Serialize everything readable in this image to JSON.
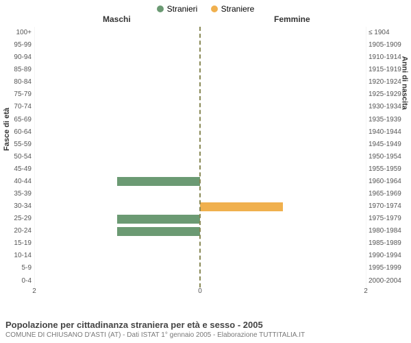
{
  "legend": {
    "male": {
      "label": "Stranieri",
      "color": "#6b9a73"
    },
    "female": {
      "label": "Straniere",
      "color": "#f0b04e"
    }
  },
  "subtitles": {
    "left": "Maschi",
    "right": "Femmine"
  },
  "axis": {
    "left_title": "Fasce di età",
    "right_title": "Anni di nascita",
    "xmax": 2,
    "xticks_left": [
      "2",
      "0"
    ],
    "xticks_right": [
      "0",
      "2"
    ]
  },
  "rows": [
    {
      "age": "100+",
      "birth": "≤ 1904",
      "m": 0,
      "f": 0
    },
    {
      "age": "95-99",
      "birth": "1905-1909",
      "m": 0,
      "f": 0
    },
    {
      "age": "90-94",
      "birth": "1910-1914",
      "m": 0,
      "f": 0
    },
    {
      "age": "85-89",
      "birth": "1915-1919",
      "m": 0,
      "f": 0
    },
    {
      "age": "80-84",
      "birth": "1920-1924",
      "m": 0,
      "f": 0
    },
    {
      "age": "75-79",
      "birth": "1925-1929",
      "m": 0,
      "f": 0
    },
    {
      "age": "70-74",
      "birth": "1930-1934",
      "m": 0,
      "f": 0
    },
    {
      "age": "65-69",
      "birth": "1935-1939",
      "m": 0,
      "f": 0
    },
    {
      "age": "60-64",
      "birth": "1940-1944",
      "m": 0,
      "f": 0
    },
    {
      "age": "55-59",
      "birth": "1945-1949",
      "m": 0,
      "f": 0
    },
    {
      "age": "50-54",
      "birth": "1950-1954",
      "m": 0,
      "f": 0
    },
    {
      "age": "45-49",
      "birth": "1955-1959",
      "m": 0,
      "f": 0
    },
    {
      "age": "40-44",
      "birth": "1960-1964",
      "m": 1,
      "f": 0
    },
    {
      "age": "35-39",
      "birth": "1965-1969",
      "m": 0,
      "f": 0
    },
    {
      "age": "30-34",
      "birth": "1970-1974",
      "m": 0,
      "f": 1
    },
    {
      "age": "25-29",
      "birth": "1975-1979",
      "m": 1,
      "f": 0
    },
    {
      "age": "20-24",
      "birth": "1980-1984",
      "m": 1,
      "f": 0
    },
    {
      "age": "15-19",
      "birth": "1985-1989",
      "m": 0,
      "f": 0
    },
    {
      "age": "10-14",
      "birth": "1990-1994",
      "m": 0,
      "f": 0
    },
    {
      "age": "5-9",
      "birth": "1995-1999",
      "m": 0,
      "f": 0
    },
    {
      "age": "0-4",
      "birth": "2000-2004",
      "m": 0,
      "f": 0
    }
  ],
  "style": {
    "grid_color": "#f5f5f5",
    "center_line_color": "#888855",
    "tick_font_color": "#555555",
    "tick_fontsize": 10,
    "subtitle_fontsize": 12
  },
  "footer": {
    "title": "Popolazione per cittadinanza straniera per età e sesso - 2005",
    "sub": "COMUNE DI CHIUSANO D'ASTI (AT) - Dati ISTAT 1° gennaio 2005 - Elaborazione TUTTITALIA.IT"
  }
}
